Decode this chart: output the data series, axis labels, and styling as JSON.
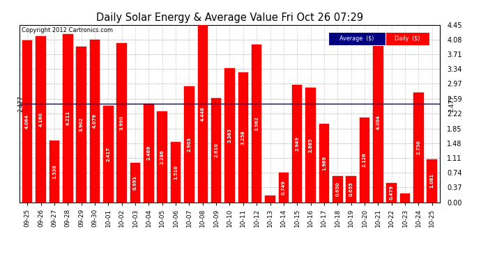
{
  "title": "Daily Solar Energy & Average Value Fri Oct 26 07:29",
  "copyright": "Copyright 2012 Cartronics.com",
  "average_value": 2.477,
  "bar_color": "#ff0000",
  "average_line_color": "#00008b",
  "categories": [
    "09-25",
    "09-26",
    "09-27",
    "09-28",
    "09-29",
    "09-30",
    "10-01",
    "10-02",
    "10-03",
    "10-04",
    "10-05",
    "10-06",
    "10-07",
    "10-08",
    "10-09",
    "10-10",
    "10-11",
    "10-12",
    "10-13",
    "10-14",
    "10-15",
    "10-16",
    "10-17",
    "10-18",
    "10-19",
    "10-20",
    "10-21",
    "10-22",
    "10-23",
    "10-24",
    "10-25"
  ],
  "values": [
    4.064,
    4.16,
    1.538,
    4.211,
    3.902,
    4.079,
    2.417,
    3.99,
    0.991,
    2.469,
    2.286,
    1.51,
    2.903,
    4.448,
    2.61,
    3.363,
    3.258,
    3.962,
    0.169,
    0.749,
    2.949,
    2.865,
    1.969,
    0.65,
    0.655,
    2.126,
    4.004,
    0.479,
    0.226,
    2.75,
    1.081
  ],
  "yticks": [
    0.0,
    0.37,
    0.74,
    1.11,
    1.48,
    1.85,
    2.22,
    2.59,
    2.97,
    3.34,
    3.71,
    4.08,
    4.45
  ],
  "ylim": [
    0,
    4.45
  ],
  "legend_avg_bg": "#000080",
  "legend_daily_bg": "#ff0000",
  "background_color": "#ffffff"
}
